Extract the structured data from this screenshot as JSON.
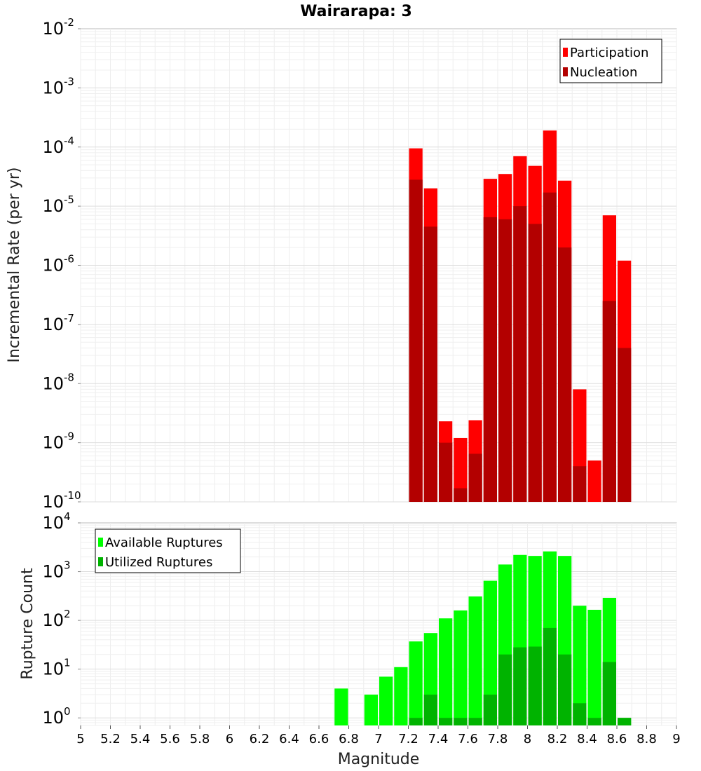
{
  "title": "Wairarapa: 3",
  "chart_data": [
    {
      "type": "bar",
      "yscale": "log",
      "ylabel": "Incremental Rate (per yr)",
      "xlim": [
        5,
        9
      ],
      "ylim": [
        1e-10,
        0.01
      ],
      "y_ticks": [
        {
          "base": "10",
          "exp": "-10"
        },
        {
          "base": "10",
          "exp": "-9"
        },
        {
          "base": "10",
          "exp": "-8"
        },
        {
          "base": "10",
          "exp": "-7"
        },
        {
          "base": "10",
          "exp": "-6"
        },
        {
          "base": "10",
          "exp": "-5"
        },
        {
          "base": "10",
          "exp": "-4"
        },
        {
          "base": "10",
          "exp": "-3"
        },
        {
          "base": "10",
          "exp": "-2"
        }
      ],
      "legend": {
        "position": "top-right"
      },
      "x": [
        7.25,
        7.35,
        7.45,
        7.55,
        7.65,
        7.75,
        7.85,
        7.95,
        8.05,
        8.15,
        8.25,
        8.35,
        8.45,
        8.55,
        8.65
      ],
      "series": [
        {
          "name": "Participation",
          "color": "#ff0000",
          "values": [
            9.5e-05,
            2e-05,
            2.3e-09,
            1.2e-09,
            2.4e-09,
            2.9e-05,
            3.5e-05,
            7e-05,
            4.8e-05,
            0.00019,
            2.7e-05,
            8e-09,
            5e-10,
            7e-06,
            1.2e-06
          ]
        },
        {
          "name": "Nucleation",
          "color": "#b30000",
          "values": [
            2.8e-05,
            4.5e-06,
            1e-09,
            1.7e-10,
            6.5e-10,
            6.5e-06,
            6e-06,
            1e-05,
            5e-06,
            1.7e-05,
            2e-06,
            4e-10,
            null,
            2.5e-07,
            4e-08
          ]
        }
      ]
    },
    {
      "type": "bar",
      "yscale": "log",
      "xlabel": "Magnitude",
      "ylabel": "Rupture Count",
      "xlim": [
        5,
        9
      ],
      "ylim": [
        0.7,
        10000
      ],
      "x_ticks": [
        "5",
        "5.2",
        "5.4",
        "5.6",
        "5.8",
        "6",
        "6.2",
        "6.4",
        "6.6",
        "6.8",
        "7",
        "7.2",
        "7.4",
        "7.6",
        "7.8",
        "8",
        "8.2",
        "8.4",
        "8.6",
        "8.8",
        "9"
      ],
      "y_ticks": [
        {
          "base": "10",
          "exp": "0"
        },
        {
          "base": "10",
          "exp": "1"
        },
        {
          "base": "10",
          "exp": "2"
        },
        {
          "base": "10",
          "exp": "3"
        },
        {
          "base": "10",
          "exp": "4"
        }
      ],
      "legend": {
        "position": "top-left"
      },
      "x": [
        6.75,
        6.85,
        6.95,
        7.05,
        7.15,
        7.25,
        7.35,
        7.45,
        7.55,
        7.65,
        7.75,
        7.85,
        7.95,
        8.05,
        8.15,
        8.25,
        8.35,
        8.45,
        8.55,
        8.65
      ],
      "series": [
        {
          "name": "Available Ruptures",
          "color": "#00ff00",
          "values": [
            4,
            null,
            3,
            7,
            11,
            37,
            55,
            110,
            160,
            310,
            650,
            1400,
            2200,
            2100,
            2600,
            2100,
            200,
            165,
            290,
            1
          ]
        },
        {
          "name": "Utilized Ruptures",
          "color": "#00b300",
          "values": [
            null,
            null,
            null,
            null,
            null,
            1,
            3,
            1,
            1,
            1,
            3,
            20,
            28,
            29,
            70,
            20,
            2,
            1,
            14,
            1
          ]
        }
      ]
    }
  ]
}
